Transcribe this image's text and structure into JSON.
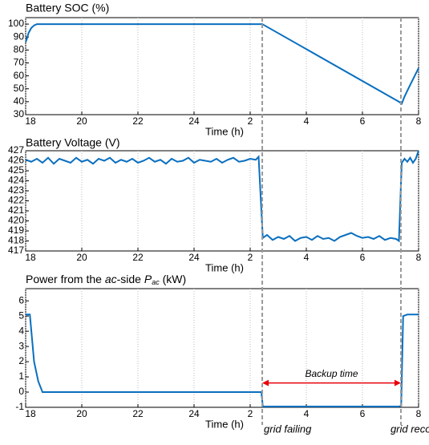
{
  "chart_data": [
    {
      "type": "line",
      "title": "Battery SOC (%)",
      "xlabel": "Time (h)",
      "xlim": [
        18,
        32
      ],
      "xticks": [
        18,
        20,
        22,
        24,
        {
          "value": 26,
          "label": "2"
        },
        {
          "value": 28,
          "label": "4"
        },
        {
          "value": 30,
          "label": "6"
        },
        {
          "value": 32,
          "label": "8"
        }
      ],
      "ylim": [
        30,
        105
      ],
      "yticks": [
        30,
        40,
        50,
        60,
        70,
        80,
        90,
        100
      ],
      "grid": "x",
      "series": [
        {
          "color": "#0a6fbf",
          "x": [
            18,
            18.05,
            18.1,
            18.2,
            18.3,
            18.4,
            18.5,
            26.43,
            31.3,
            31.4,
            31.5,
            31.7,
            32
          ],
          "values": [
            86,
            89,
            93,
            97,
            99,
            100,
            100,
            100,
            40,
            38.5,
            44,
            53,
            66
          ]
        }
      ]
    },
    {
      "type": "line",
      "title": "Battery Voltage (V)",
      "xlabel": "Time (h)",
      "xlim": [
        18,
        32
      ],
      "xticks": [
        18,
        20,
        22,
        24,
        {
          "value": 26,
          "label": "2"
        },
        {
          "value": 28,
          "label": "4"
        },
        {
          "value": 30,
          "label": "6"
        },
        {
          "value": 32,
          "label": "8"
        }
      ],
      "ylim": [
        417,
        427
      ],
      "yticks": [
        417,
        418,
        419,
        420,
        421,
        422,
        423,
        424,
        425,
        426,
        427
      ],
      "grid": "x",
      "series": [
        {
          "color": "#0a6fbf",
          "x": [
            18,
            18.2,
            18.4,
            18.6,
            18.8,
            19,
            19.2,
            19.4,
            19.6,
            19.8,
            20,
            20.2,
            20.4,
            20.6,
            20.8,
            21,
            21.2,
            21.4,
            21.6,
            21.8,
            22,
            22.2,
            22.4,
            22.6,
            22.8,
            23,
            23.2,
            23.4,
            23.6,
            23.8,
            24,
            24.2,
            24.4,
            24.6,
            24.8,
            25,
            25.2,
            25.4,
            25.6,
            25.8,
            26,
            26.2,
            26.3,
            26.45,
            26.6,
            26.8,
            27,
            27.2,
            27.4,
            27.6,
            27.8,
            28,
            28.2,
            28.4,
            28.6,
            28.8,
            29,
            29.2,
            29.4,
            29.6,
            29.8,
            30,
            30.2,
            30.4,
            30.6,
            30.8,
            31,
            31.2,
            31.3,
            31.4,
            31.5,
            31.6,
            31.7,
            31.8,
            31.9,
            32
          ],
          "values": [
            426.1,
            425.9,
            426.2,
            425.8,
            426.3,
            425.7,
            426.2,
            426.0,
            425.8,
            426.3,
            425.9,
            426.1,
            425.7,
            426.2,
            426.0,
            426.3,
            425.8,
            426.1,
            425.9,
            426.2,
            425.8,
            426.0,
            426.3,
            425.9,
            426.1,
            425.7,
            426.2,
            425.9,
            426.0,
            426.3,
            425.8,
            426.1,
            426.0,
            425.9,
            426.2,
            425.8,
            426.1,
            426.3,
            425.9,
            426.0,
            426.2,
            426.1,
            426.4,
            418.3,
            418.6,
            418.1,
            418.4,
            418.2,
            418.5,
            418.0,
            418.3,
            418.4,
            418.1,
            418.5,
            418.2,
            418.3,
            418.0,
            418.4,
            418.6,
            418.8,
            418.5,
            418.3,
            418.4,
            418.2,
            418.5,
            418.1,
            418.3,
            418.2,
            418.0,
            425.8,
            426.2,
            425.9,
            426.3,
            425.8,
            426.2,
            427
          ]
        }
      ]
    },
    {
      "type": "line",
      "title_parts": [
        "Power from the ",
        "ac",
        "-side ",
        "P",
        "ac",
        " (kW)"
      ],
      "xlabel": "Time (h)",
      "xlim": [
        18,
        32
      ],
      "xticks": [
        18,
        20,
        22,
        24,
        {
          "value": 26,
          "label": "2"
        },
        {
          "value": 28,
          "label": "4"
        },
        {
          "value": 30,
          "label": "6"
        },
        {
          "value": 32,
          "label": "8"
        }
      ],
      "ylim": [
        -1,
        6.8
      ],
      "yticks": [
        -1,
        0,
        1,
        2,
        3,
        4,
        5,
        6
      ],
      "grid": "x",
      "series": [
        {
          "color": "#0a6fbf",
          "x": [
            18,
            18.15,
            18.3,
            18.45,
            18.6,
            26.4,
            26.45,
            31.3,
            31.38,
            31.45,
            31.6,
            32
          ],
          "values": [
            5.1,
            5.1,
            2,
            0.7,
            0,
            0,
            -0.95,
            -0.95,
            -0.9,
            5.0,
            5.1,
            5.1
          ]
        }
      ],
      "annotation": {
        "text": "Backup time",
        "y": 0.6,
        "color": "#e8000b"
      }
    }
  ],
  "events": [
    {
      "x": 26.43,
      "label": "grid failing"
    },
    {
      "x": 31.37,
      "label": "grid recovering"
    }
  ]
}
